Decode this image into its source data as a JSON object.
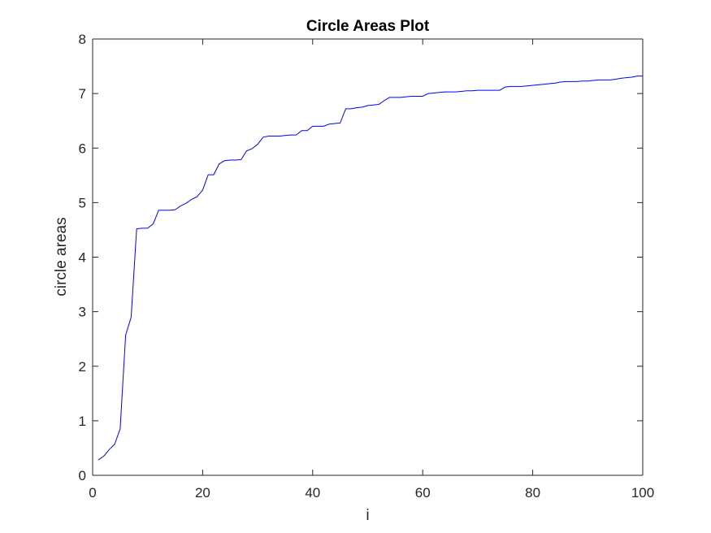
{
  "chart_data": {
    "type": "line",
    "title": "Circle Areas Plot",
    "xlabel": "i",
    "ylabel": "circle areas",
    "xlim": [
      0,
      100
    ],
    "ylim": [
      0,
      8
    ],
    "xticks": [
      0,
      20,
      40,
      60,
      80,
      100
    ],
    "yticks": [
      0,
      1,
      2,
      3,
      4,
      5,
      6,
      7,
      8
    ],
    "grid": false,
    "series": [
      {
        "color": "#0000ff",
        "x": [
          1,
          2,
          3,
          4,
          5,
          6,
          7,
          8,
          9,
          10,
          11,
          12,
          13,
          14,
          15,
          16,
          17,
          18,
          19,
          20,
          21,
          22,
          23,
          24,
          25,
          26,
          27,
          28,
          29,
          30,
          31,
          32,
          33,
          34,
          35,
          36,
          37,
          38,
          39,
          40,
          41,
          42,
          43,
          44,
          45,
          46,
          47,
          48,
          49,
          50,
          51,
          52,
          53,
          54,
          55,
          56,
          57,
          58,
          59,
          60,
          61,
          62,
          63,
          64,
          65,
          66,
          67,
          68,
          69,
          70,
          71,
          72,
          73,
          74,
          75,
          76,
          77,
          78,
          79,
          80,
          81,
          82,
          83,
          84,
          85,
          86,
          87,
          88,
          89,
          90,
          91,
          92,
          93,
          94,
          95,
          96,
          97,
          98,
          99,
          100
        ],
        "y": [
          0.28,
          0.35,
          0.47,
          0.57,
          0.85,
          2.57,
          2.9,
          4.52,
          4.53,
          4.53,
          4.61,
          4.86,
          4.86,
          4.86,
          4.87,
          4.94,
          4.99,
          5.06,
          5.11,
          5.23,
          5.51,
          5.51,
          5.71,
          5.77,
          5.78,
          5.78,
          5.79,
          5.95,
          5.99,
          6.07,
          6.2,
          6.22,
          6.22,
          6.22,
          6.23,
          6.24,
          6.24,
          6.32,
          6.32,
          6.4,
          6.4,
          6.4,
          6.44,
          6.45,
          6.46,
          6.72,
          6.72,
          6.74,
          6.75,
          6.78,
          6.79,
          6.8,
          6.87,
          6.93,
          6.93,
          6.93,
          6.94,
          6.95,
          6.95,
          6.95,
          7.0,
          7.01,
          7.02,
          7.03,
          7.03,
          7.03,
          7.04,
          7.05,
          7.05,
          7.06,
          7.06,
          7.06,
          7.06,
          7.06,
          7.12,
          7.13,
          7.13,
          7.13,
          7.14,
          7.15,
          7.16,
          7.17,
          7.18,
          7.19,
          7.21,
          7.22,
          7.22,
          7.22,
          7.23,
          7.23,
          7.24,
          7.25,
          7.25,
          7.25,
          7.26,
          7.28,
          7.29,
          7.3,
          7.32,
          7.32
        ]
      }
    ]
  }
}
